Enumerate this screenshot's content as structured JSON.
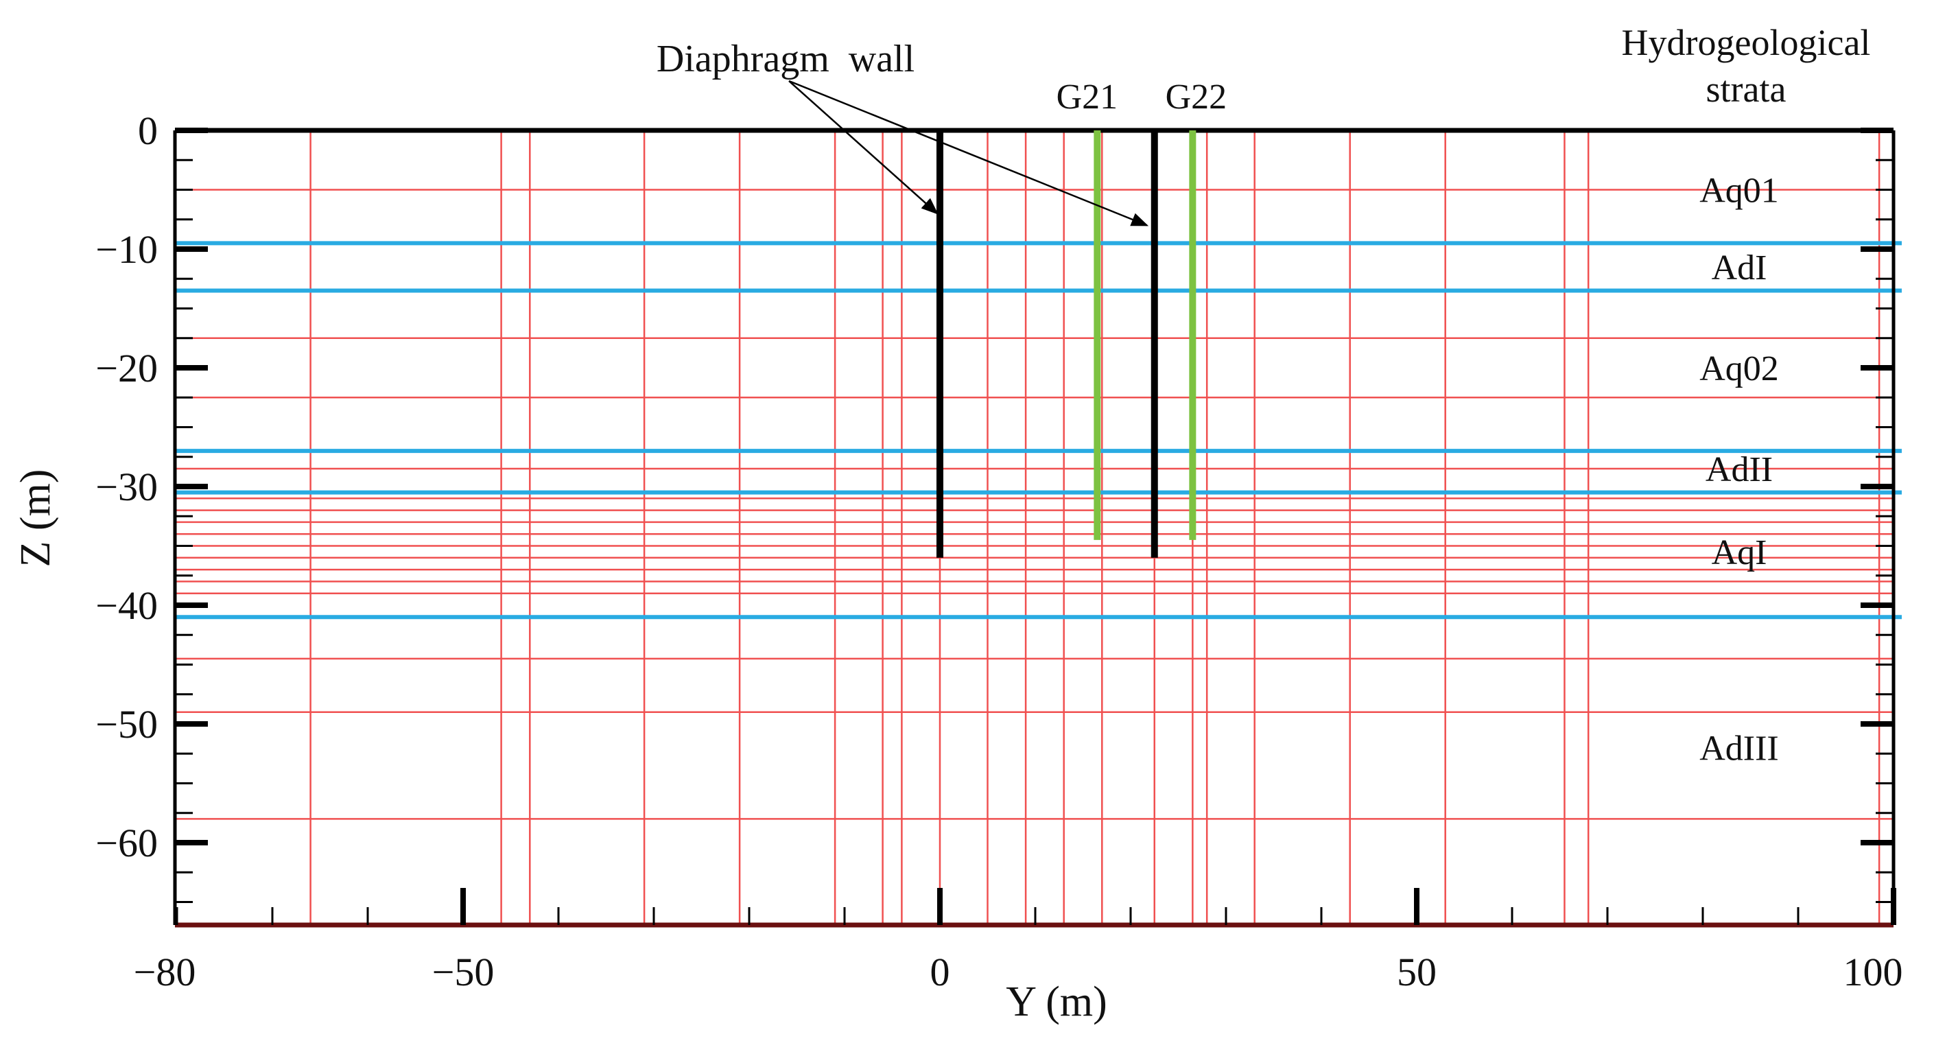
{
  "chart_data": {
    "type": "line",
    "title": "",
    "xlabel": "Y (m)",
    "ylabel": "Z (m)",
    "xlim": [
      -80,
      100
    ],
    "ylim": [
      -67,
      0
    ],
    "x_ticks": [
      {
        "value": -80,
        "label": "−80"
      },
      {
        "value": -50,
        "label": "−50"
      },
      {
        "value": 0,
        "label": "0"
      },
      {
        "value": 50,
        "label": "50"
      },
      {
        "value": 100,
        "label": "100"
      }
    ],
    "y_ticks": [
      {
        "value": 0,
        "label": "0"
      },
      {
        "value": -10,
        "label": "−10"
      },
      {
        "value": -20,
        "label": "−20"
      },
      {
        "value": -30,
        "label": "−30"
      },
      {
        "value": -40,
        "label": "−40"
      },
      {
        "value": -50,
        "label": "−50"
      },
      {
        "value": -60,
        "label": "−60"
      }
    ],
    "mesh": {
      "color": "#f05050",
      "vertical_lines": [
        -66,
        -46,
        -43,
        -31,
        -21,
        -11,
        -6,
        -4,
        0,
        5,
        9,
        13,
        17,
        22.5,
        26.5,
        28,
        33,
        43,
        53,
        65.5,
        68,
        98.5
      ],
      "horizontal_lines": [
        -5,
        -9.5,
        -17.5,
        -22.5,
        -28.5,
        -31,
        -32,
        -33,
        -34,
        -35,
        -36,
        -37,
        -38,
        -39,
        -44.5,
        -49,
        -58
      ]
    },
    "strata_boundaries": {
      "color": "#29abe2",
      "z": [
        -9.5,
        -13.5,
        -27,
        -30.5,
        -41
      ]
    },
    "diaphragm_walls": {
      "label": "Diaphragm  wall",
      "color": "#000000",
      "items": [
        {
          "y": 0,
          "z_top": 0,
          "z_bottom": -36
        },
        {
          "y": 22.5,
          "z_top": 0,
          "z_bottom": -36
        }
      ],
      "arrow_tips": [
        {
          "y": 0,
          "z": -7
        },
        {
          "y": 22,
          "z": -8
        }
      ]
    },
    "grout_lines": {
      "color": "#7dc241",
      "items": [
        {
          "name": "G21",
          "y": 16.5,
          "z_top": 0,
          "z_bottom": -34.5
        },
        {
          "name": "G22",
          "y": 26.5,
          "z_top": 0,
          "z_bottom": -34.5
        }
      ]
    },
    "strata": {
      "header": [
        "Hydrogeological",
        "strata"
      ],
      "layers": [
        {
          "name": "Aq01",
          "z": -5
        },
        {
          "name": "AdI",
          "z": -11.5
        },
        {
          "name": "Aq02",
          "z": -20
        },
        {
          "name": "AdII",
          "z": -28.5
        },
        {
          "name": "AqI",
          "z": -35.5
        },
        {
          "name": "AdIII",
          "z": -52
        }
      ]
    }
  }
}
